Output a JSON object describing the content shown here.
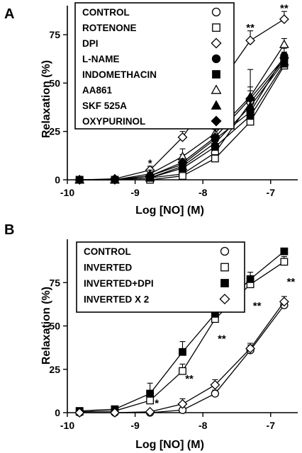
{
  "figure": {
    "panels": [
      {
        "letter": "A",
        "chart_data": {
          "type": "line",
          "title": "",
          "xlabel": "Log [NO] (M)",
          "ylabel": "Relaxation (%)",
          "xlim": [
            -10,
            -6.6
          ],
          "ylim": [
            0,
            90
          ],
          "x_ticks": [
            -10,
            -9,
            -8,
            -7
          ],
          "x_tick_labels": [
            "-10",
            "-9",
            "-8",
            "-7"
          ],
          "y_ticks": [
            0,
            25,
            50,
            75
          ],
          "y_tick_labels": [
            "0",
            "25",
            "50",
            "75"
          ],
          "legend_position": "top-center",
          "x": [
            -9.82,
            -9.3,
            -8.78,
            -8.3,
            -7.82,
            -7.3,
            -6.8
          ],
          "series": [
            {
              "name": "CONTROL",
              "marker": "circle-open",
              "values": [
                0,
                0,
                1,
                3,
                14,
                40,
                62
              ],
              "errors": [
                0,
                0,
                1,
                2,
                3,
                3,
                4
              ]
            },
            {
              "name": "ROTENONE",
              "marker": "square-open",
              "values": [
                0,
                0,
                0,
                2,
                11,
                30,
                59
              ],
              "errors": [
                0,
                0,
                1,
                1,
                2,
                3,
                3
              ]
            },
            {
              "name": "DPI",
              "marker": "diamond-open",
              "values": [
                0,
                0.5,
                5,
                22,
                46,
                72,
                83
              ],
              "errors": [
                0,
                0.5,
                2,
                3,
                5,
                5,
                4
              ]
            },
            {
              "name": "L-NAME",
              "marker": "circle-filled",
              "values": [
                0,
                0,
                2,
                8,
                21,
                35,
                64
              ],
              "errors": [
                0,
                0,
                1,
                5,
                10,
                22,
                4
              ]
            },
            {
              "name": "INDOMETHACIN",
              "marker": "square-filled",
              "values": [
                0,
                0,
                1,
                6,
                17,
                33,
                60
              ],
              "errors": [
                0,
                0,
                1,
                2,
                4,
                4,
                3
              ]
            },
            {
              "name": "AA861",
              "marker": "triangle-open",
              "values": [
                0,
                0,
                3,
                12,
                24,
                43,
                70
              ],
              "errors": [
                0,
                0,
                2,
                4,
                5,
                5,
                3
              ]
            },
            {
              "name": "SKF 525A",
              "marker": "triangle-filled",
              "values": [
                0,
                0,
                1,
                7,
                19,
                38,
                61
              ],
              "errors": [
                0,
                0,
                1,
                2,
                3,
                4,
                3
              ]
            },
            {
              "name": "OXYPURINOL",
              "marker": "diamond-filled",
              "values": [
                0,
                0,
                2,
                9,
                22,
                42,
                63
              ],
              "errors": [
                0,
                0,
                1,
                2,
                4,
                4,
                3
              ]
            }
          ],
          "annotations": [
            {
              "text": "*",
              "x": -8.78,
              "y": 9
            },
            {
              "text": "**",
              "x": -8.3,
              "y": 28
            },
            {
              "text": "**",
              "x": -7.82,
              "y": 53
            },
            {
              "text": "**",
              "x": -7.3,
              "y": 79
            },
            {
              "text": "**",
              "x": -6.8,
              "y": 89
            }
          ]
        }
      },
      {
        "letter": "B",
        "chart_data": {
          "type": "line",
          "title": "",
          "xlabel": "Log [NO] (M)",
          "ylabel": "Relaxation (%)",
          "xlim": [
            -10,
            -6.6
          ],
          "ylim": [
            0,
            100
          ],
          "x_ticks": [
            -10,
            -9,
            -8,
            -7
          ],
          "x_tick_labels": [
            "-10",
            "-9",
            "-8",
            "-7"
          ],
          "y_ticks": [
            0,
            25,
            50,
            75
          ],
          "y_tick_labels": [
            "0",
            "25",
            "50",
            "75"
          ],
          "legend_position": "top-left",
          "x": [
            -9.82,
            -9.3,
            -8.78,
            -8.3,
            -7.82,
            -7.3,
            -6.8
          ],
          "series": [
            {
              "name": "CONTROL",
              "marker": "circle-open",
              "values": [
                0,
                0,
                0,
                1.5,
                11,
                36,
                62
              ],
              "errors": [
                0,
                0,
                0,
                1,
                2,
                3,
                3
              ]
            },
            {
              "name": "INVERTED",
              "marker": "square-open",
              "values": [
                0.5,
                1,
                7,
                24,
                54,
                74,
                87
              ],
              "errors": [
                0,
                0,
                3,
                4,
                4,
                3,
                3
              ]
            },
            {
              "name": "INVERTED+DPI",
              "marker": "square-filled",
              "values": [
                1,
                2,
                11,
                35,
                57,
                77,
                93
              ],
              "errors": [
                0,
                0,
                6,
                6,
                5,
                4,
                0
              ]
            },
            {
              "name": "INVERTED X 2",
              "marker": "diamond-open",
              "values": [
                0,
                0,
                0.5,
                5,
                16,
                37,
                64
              ],
              "errors": [
                0,
                0,
                0,
                3,
                3,
                3,
                3
              ]
            }
          ],
          "annotations": [
            {
              "text": "*",
              "x": -8.68,
              "y": 6
            },
            {
              "text": "**",
              "x": -8.2,
              "y": 20
            },
            {
              "text": "**",
              "x": -7.72,
              "y": 43
            },
            {
              "text": "**",
              "x": -7.2,
              "y": 62
            },
            {
              "text": "**",
              "x": -6.7,
              "y": 76
            }
          ]
        }
      }
    ]
  }
}
